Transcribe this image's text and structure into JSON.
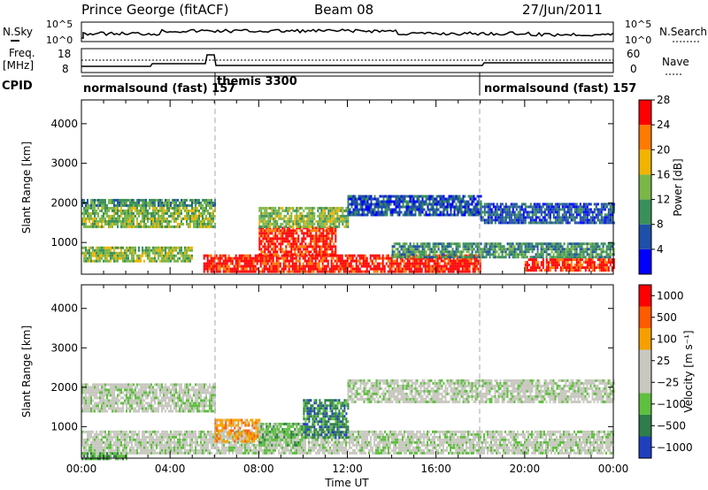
{
  "header": {
    "station": "Prince George (fitACF)",
    "beam": "Beam 08",
    "date": "27/Jun/2011"
  },
  "top_panels": {
    "nsky_label": "N.Sky",
    "nsearch_label": "N.Search",
    "noise_scale": [
      "10^5",
      "10^0"
    ],
    "freq_label": "Freq.",
    "freq_unit": "[MHz]",
    "freq_ticks": [
      "18",
      "8"
    ],
    "nave_label": "Nave",
    "nave_ticks": [
      "60",
      "0"
    ],
    "cpid_label": "CPID",
    "cpid_modes": [
      {
        "label": "normalsound (fast) 157",
        "start_h": 0,
        "end_h": 6
      },
      {
        "label": "themis 3300",
        "start_h": 6,
        "end_h": 18
      },
      {
        "label": "normalsound (fast) 157",
        "start_h": 18,
        "end_h": 24
      }
    ]
  },
  "chart_data": [
    {
      "type": "heatmap",
      "name": "power",
      "ylabel": "Slant Range [km]",
      "yticks": [
        "1000",
        "2000",
        "3000",
        "4000"
      ],
      "ylim": [
        200,
        4600
      ],
      "xlim": [
        0,
        24
      ],
      "colorbar_label": "Power [dB]",
      "colorbar_ticks": [
        "4",
        "8",
        "12",
        "16",
        "20",
        "24",
        "28"
      ],
      "colorbar_colors": [
        "#0000ff",
        "#1f4fa8",
        "#3a8f5a",
        "#7ab648",
        "#f0b400",
        "#ff7a00",
        "#ff0000"
      ],
      "bands": [
        {
          "x0": 0,
          "x1": 6,
          "y0": 1400,
          "y1": 1900,
          "level": 3
        },
        {
          "x0": 0,
          "x1": 6,
          "y0": 1900,
          "y1": 2100,
          "level": 2
        },
        {
          "x0": 0,
          "x1": 5,
          "y0": 500,
          "y1": 900,
          "level": 3
        },
        {
          "x0": 5.5,
          "x1": 18,
          "y0": 250,
          "y1": 700,
          "level": 6
        },
        {
          "x0": 8,
          "x1": 11.5,
          "y0": 700,
          "y1": 1400,
          "level": 6
        },
        {
          "x0": 8,
          "x1": 12,
          "y0": 1400,
          "y1": 1900,
          "level": 3
        },
        {
          "x0": 12,
          "x1": 18,
          "y0": 1700,
          "y1": 2200,
          "level": 1
        },
        {
          "x0": 14,
          "x1": 24,
          "y0": 600,
          "y1": 1000,
          "level": 2
        },
        {
          "x0": 20,
          "x1": 24,
          "y0": 300,
          "y1": 600,
          "level": 6
        },
        {
          "x0": 18,
          "x1": 24,
          "y0": 1500,
          "y1": 2000,
          "level": 1
        }
      ]
    },
    {
      "type": "heatmap",
      "name": "velocity",
      "ylabel": "Slant Range [km]",
      "yticks": [
        "1000",
        "2000",
        "3000",
        "4000"
      ],
      "ylim": [
        200,
        4600
      ],
      "xlim": [
        0,
        24
      ],
      "xticks": [
        "00:00",
        "04:00",
        "08:00",
        "12:00",
        "16:00",
        "20:00",
        "00:00"
      ],
      "xlabel": "Time UT",
      "colorbar_label": "Velocity [m s⁻¹]",
      "colorbar_ticks": [
        "1000",
        "500",
        "100",
        "25",
        "−25",
        "−100",
        "−500",
        "−1000"
      ],
      "colorbar_colors": [
        "#1f3fbf",
        "#2e7d4a",
        "#5fbf3f",
        "#c8c8c0",
        "#c8c8c0",
        "#f5a000",
        "#ff5a00",
        "#ff0000"
      ],
      "bands": [
        {
          "x0": 0,
          "x1": 6,
          "y0": 1400,
          "y1": 2100,
          "level": 3
        },
        {
          "x0": 0,
          "x1": 24,
          "y0": 300,
          "y1": 900,
          "level": 3
        },
        {
          "x0": 6,
          "x1": 8,
          "y0": 600,
          "y1": 1200,
          "level": 5
        },
        {
          "x0": 8,
          "x1": 10,
          "y0": 500,
          "y1": 1100,
          "level": 2
        },
        {
          "x0": 10,
          "x1": 12,
          "y0": 700,
          "y1": 1700,
          "level": 1
        },
        {
          "x0": 12,
          "x1": 24,
          "y0": 1600,
          "y1": 2200,
          "level": 3
        },
        {
          "x0": 0,
          "x1": 2,
          "y0": 200,
          "y1": 350,
          "level": 2
        }
      ]
    }
  ]
}
